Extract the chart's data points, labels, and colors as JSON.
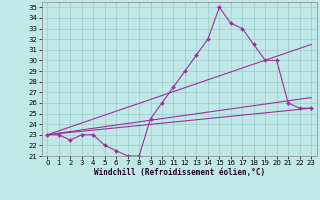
{
  "xlabel": "Windchill (Refroidissement éolien,°C)",
  "background_color": "#c0e8e8",
  "grid_color": "#a0cccc",
  "line_color": "#993399",
  "xlim": [
    -0.5,
    23.5
  ],
  "ylim": [
    21,
    35.5
  ],
  "yticks": [
    21,
    22,
    23,
    24,
    25,
    26,
    27,
    28,
    29,
    30,
    31,
    32,
    33,
    34,
    35
  ],
  "xticks": [
    0,
    1,
    2,
    3,
    4,
    5,
    6,
    7,
    8,
    9,
    10,
    11,
    12,
    13,
    14,
    15,
    16,
    17,
    18,
    19,
    20,
    21,
    22,
    23
  ],
  "main_x": [
    0,
    1,
    2,
    3,
    4,
    5,
    6,
    7,
    8,
    9,
    10,
    11,
    12,
    13,
    14,
    15,
    16,
    17,
    18,
    19,
    20,
    21,
    22,
    23
  ],
  "main_y": [
    23,
    23,
    22.5,
    23,
    23,
    22,
    21.5,
    21,
    21,
    24.5,
    26,
    27.5,
    29,
    30.5,
    32,
    35,
    33.5,
    33,
    31.5,
    30,
    30,
    26,
    25.5,
    25.5
  ],
  "line1_x": [
    0,
    23
  ],
  "line1_y": [
    23,
    25.5
  ],
  "line2_x": [
    0,
    23
  ],
  "line2_y": [
    23,
    26.5
  ],
  "line3_x": [
    0,
    23
  ],
  "line3_y": [
    23,
    31.5
  ],
  "xlabel_fontsize": 5.5,
  "tick_fontsize": 5,
  "figsize": [
    3.2,
    2.0
  ],
  "dpi": 100
}
